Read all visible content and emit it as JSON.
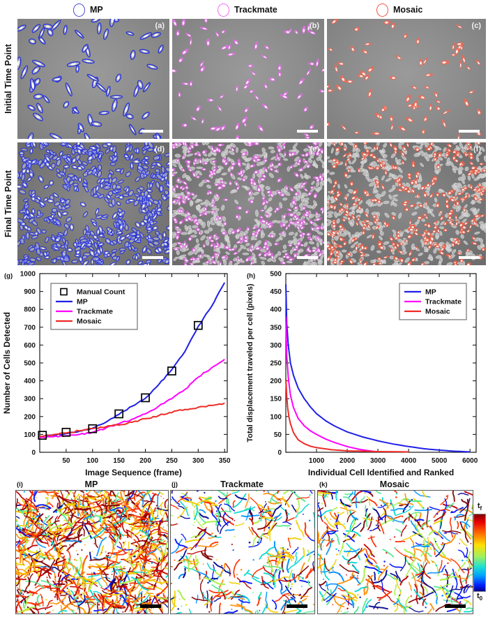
{
  "top_legend": {
    "items": [
      {
        "label": "MP",
        "color": "#4a4ad4"
      },
      {
        "label": "Trackmate",
        "color": "#f26af2"
      },
      {
        "label": "Mosaic",
        "color": "#f05548"
      }
    ]
  },
  "micro": {
    "rows": [
      {
        "label": "Initial Time Point",
        "panels": [
          {
            "letter": "(a)",
            "method": "MP",
            "style": "outline",
            "color": "#2a35d8",
            "count": 70
          },
          {
            "letter": "(b)",
            "method": "Trackmate",
            "style": "blob",
            "color": "#e070e2",
            "count": 72
          },
          {
            "letter": "(c)",
            "method": "Mosaic",
            "style": "blob",
            "color": "#ef6a55",
            "count": 72
          }
        ]
      },
      {
        "label": "Final Time Point",
        "panels": [
          {
            "letter": "(d)",
            "method": "MP",
            "style": "outline-dense",
            "color": "#2a35d8",
            "count": 620
          },
          {
            "letter": "(e)",
            "method": "Trackmate",
            "style": "blob-dense",
            "color": "#d86ad8",
            "count": 360,
            "gray_count": 520
          },
          {
            "letter": "(f)",
            "method": "Mosaic",
            "style": "blob-dense",
            "color": "#e8604a",
            "count": 360,
            "gray_count": 520
          }
        ]
      }
    ]
  },
  "chart_data": [
    {
      "type": "line",
      "panel_letter": "(g)",
      "xlabel": "Image Sequence (frame)",
      "ylabel": "Number of Cells Detected",
      "xlim": [
        0,
        355
      ],
      "ylim": [
        0,
        1000
      ],
      "xticks": [
        50,
        100,
        150,
        200,
        250,
        300,
        350
      ],
      "yticks": [
        0,
        100,
        200,
        300,
        400,
        500,
        600,
        700,
        800,
        900,
        1000
      ],
      "grid": false,
      "legend_position": "top-left",
      "series": [
        {
          "name": "Manual Count",
          "marker": "square",
          "color": "#000000",
          "x": [
            5,
            50,
            100,
            150,
            200,
            250,
            300
          ],
          "y": [
            95,
            112,
            132,
            215,
            305,
            455,
            710
          ]
        },
        {
          "name": "MP",
          "color": "#1f1fe8",
          "noise": 4,
          "x": [
            0,
            25,
            50,
            75,
            100,
            125,
            150,
            175,
            200,
            225,
            250,
            275,
            300,
            325,
            350
          ],
          "y": [
            88,
            96,
            105,
            118,
            135,
            168,
            212,
            258,
            302,
            378,
            462,
            565,
            705,
            815,
            950
          ]
        },
        {
          "name": "Trackmate",
          "color": "#ff00ff",
          "noise": 4,
          "x": [
            0,
            25,
            50,
            75,
            100,
            125,
            150,
            175,
            200,
            225,
            250,
            275,
            300,
            325,
            350
          ],
          "y": [
            82,
            87,
            93,
            100,
            112,
            135,
            160,
            185,
            215,
            258,
            300,
            352,
            420,
            472,
            520
          ]
        },
        {
          "name": "Mosaic",
          "color": "#ee2b25",
          "noise": 5,
          "x": [
            0,
            25,
            50,
            75,
            100,
            125,
            150,
            175,
            200,
            225,
            250,
            275,
            300,
            325,
            350
          ],
          "y": [
            90,
            98,
            108,
            120,
            132,
            142,
            152,
            168,
            188,
            205,
            222,
            240,
            252,
            262,
            275
          ]
        }
      ]
    },
    {
      "type": "line",
      "panel_letter": "(h)",
      "xlabel": "Individual Cell Identified and Ranked",
      "ylabel": "Total displacement traveled per cell (pixels)",
      "xlim": [
        0,
        6200
      ],
      "ylim": [
        0,
        500
      ],
      "xticks": [
        1000,
        2000,
        3000,
        4000,
        5000,
        6000
      ],
      "yticks": [
        0,
        50,
        100,
        150,
        200,
        250,
        300,
        350,
        400,
        450,
        500
      ],
      "grid": false,
      "legend_position": "top-right",
      "series": [
        {
          "name": "MP",
          "color": "#1f1fe8",
          "noise": 0,
          "x": [
            1,
            30,
            80,
            150,
            250,
            400,
            600,
            800,
            1000,
            1300,
            1600,
            2000,
            2500,
            3000,
            3500,
            4000,
            4500,
            5000,
            5500,
            6000
          ],
          "y": [
            470,
            360,
            300,
            250,
            215,
            180,
            150,
            127,
            108,
            88,
            73,
            57,
            43,
            32,
            23,
            16,
            10,
            6,
            3,
            1
          ]
        },
        {
          "name": "Trackmate",
          "color": "#ff00ff",
          "noise": 0,
          "x": [
            1,
            30,
            80,
            150,
            250,
            400,
            600,
            800,
            1000,
            1300,
            1600,
            2000,
            2400,
            2900
          ],
          "y": [
            380,
            270,
            210,
            160,
            125,
            95,
            74,
            60,
            50,
            37,
            27,
            16,
            8,
            2
          ]
        },
        {
          "name": "Mosaic",
          "color": "#ee2b25",
          "noise": 0,
          "x": [
            1,
            30,
            60,
            100,
            150,
            250,
            400,
            600,
            800,
            1000,
            1500,
            2000,
            3000,
            4000
          ],
          "y": [
            205,
            155,
            125,
            100,
            80,
            55,
            35,
            24,
            17,
            13,
            7,
            4,
            2,
            1
          ]
        }
      ]
    }
  ],
  "tracks": {
    "panels": [
      {
        "letter": "(i)",
        "title": "MP",
        "density": 850,
        "bias": "warm"
      },
      {
        "letter": "(j)",
        "title": "Trackmate",
        "density": 300,
        "bias": "mixed"
      },
      {
        "letter": "(k)",
        "title": "Mosaic",
        "density": 360,
        "bias": "mixed"
      }
    ],
    "colorbar": {
      "colormap": "jet",
      "top_base": "t",
      "top_sub": "f",
      "bottom_base": "t",
      "bottom_sub": "0"
    }
  }
}
